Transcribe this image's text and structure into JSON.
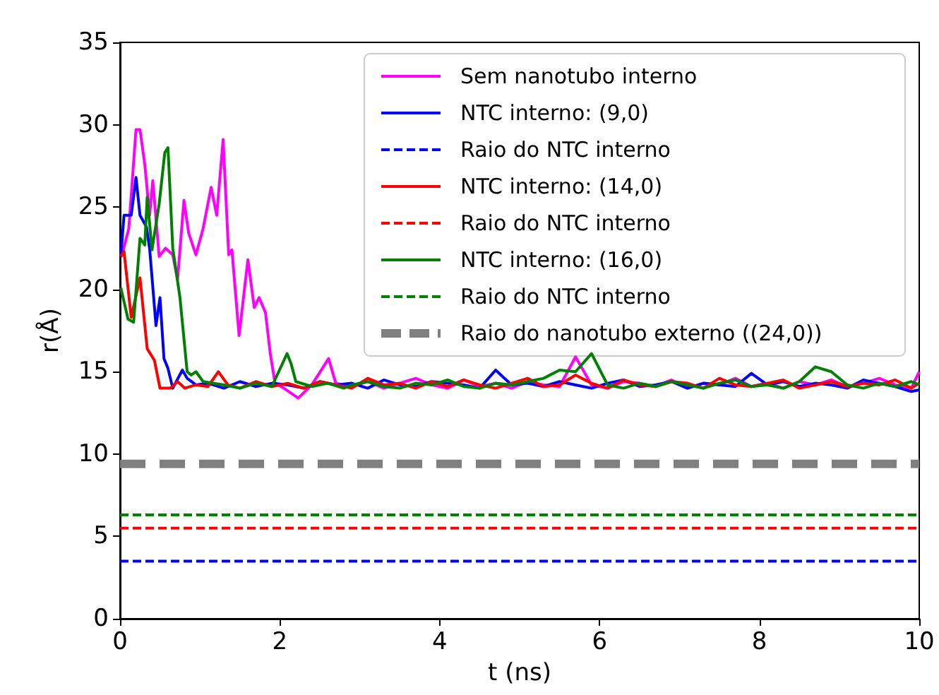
{
  "chart_data": {
    "type": "line",
    "xlabel": "t (ns)",
    "ylabel": "r(Å)",
    "xlim": [
      0,
      10
    ],
    "xticks": [
      0,
      2,
      4,
      6,
      8,
      10
    ],
    "ylim": [
      0,
      35
    ],
    "yticks": [
      0,
      5,
      10,
      15,
      20,
      25,
      30,
      35
    ],
    "grid": false,
    "legend": "top right",
    "marker": "none",
    "series": [
      {
        "name": "Sem nanotubo interno",
        "color": "#ff00ff",
        "line_style": "solid",
        "x": [
          0.02,
          0.11,
          0.2,
          0.25,
          0.31,
          0.37,
          0.41,
          0.49,
          0.57,
          0.66,
          0.72,
          0.8,
          0.86,
          0.95,
          1.04,
          1.14,
          1.21,
          1.29,
          1.36,
          1.4,
          1.49,
          1.6,
          1.68,
          1.74,
          1.82,
          1.88,
          1.94,
          2.05,
          2.23,
          2.4,
          2.61,
          2.7,
          2.9,
          3.1,
          3.3,
          3.5,
          3.7,
          3.9,
          4.1,
          4.3,
          4.5,
          4.7,
          4.9,
          5.1,
          5.3,
          5.5,
          5.7,
          5.9,
          6.1,
          6.3,
          6.5,
          6.7,
          6.9,
          7.1,
          7.3,
          7.5,
          7.7,
          7.9,
          8.1,
          8.3,
          8.5,
          8.7,
          8.9,
          9.1,
          9.3,
          9.5,
          9.7,
          9.9,
          10.0
        ],
        "values": [
          22.0,
          23.7,
          29.7,
          29.7,
          27.6,
          24.5,
          26.6,
          22.0,
          22.5,
          22.1,
          20.6,
          25.4,
          23.4,
          22.1,
          23.7,
          26.2,
          24.5,
          29.1,
          22.1,
          22.4,
          17.2,
          21.8,
          18.9,
          19.5,
          18.6,
          16.1,
          14.3,
          14.0,
          13.4,
          14.2,
          15.8,
          14.3,
          14.1,
          14.4,
          14.0,
          14.3,
          14.6,
          14.2,
          14.0,
          14.5,
          14.1,
          14.3,
          14.0,
          14.4,
          14.2,
          14.1,
          15.9,
          14.2,
          14.0,
          14.4,
          14.3,
          14.1,
          14.5,
          14.0,
          14.3,
          14.2,
          14.6,
          14.1,
          14.3,
          14.0,
          14.4,
          14.2,
          14.5,
          14.1,
          14.3,
          14.6,
          14.2,
          14.0,
          15.0
        ]
      },
      {
        "name": "NTC interno: (9,0)",
        "color": "#0000ff",
        "line_style": "solid",
        "x": [
          0.01,
          0.05,
          0.14,
          0.2,
          0.25,
          0.33,
          0.37,
          0.45,
          0.5,
          0.55,
          0.6,
          0.66,
          0.78,
          0.84,
          0.95,
          1.1,
          1.3,
          1.5,
          1.7,
          1.9,
          2.1,
          2.3,
          2.5,
          2.7,
          2.9,
          3.1,
          3.3,
          3.5,
          3.7,
          3.9,
          4.1,
          4.3,
          4.5,
          4.7,
          4.9,
          5.1,
          5.3,
          5.5,
          5.7,
          5.9,
          6.1,
          6.3,
          6.5,
          6.7,
          6.9,
          7.1,
          7.3,
          7.5,
          7.7,
          7.9,
          8.1,
          8.3,
          8.5,
          8.7,
          8.9,
          9.1,
          9.3,
          9.5,
          9.7,
          9.9,
          10.0
        ],
        "values": [
          22.0,
          24.5,
          24.5,
          26.8,
          24.5,
          23.8,
          22.5,
          17.8,
          19.5,
          15.8,
          15.2,
          14.0,
          15.1,
          14.6,
          14.2,
          14.3,
          14.0,
          14.4,
          14.1,
          14.3,
          14.2,
          14.0,
          14.4,
          14.2,
          14.3,
          14.0,
          14.5,
          14.2,
          14.1,
          14.4,
          14.3,
          14.2,
          14.0,
          15.1,
          14.2,
          14.3,
          14.1,
          14.4,
          14.2,
          14.0,
          14.3,
          14.5,
          14.1,
          14.2,
          14.4,
          14.0,
          14.3,
          14.2,
          14.1,
          14.9,
          14.2,
          14.4,
          14.1,
          14.3,
          14.2,
          14.0,
          14.5,
          14.3,
          14.1,
          13.8,
          13.9
        ]
      },
      {
        "name": "Raio do NTC interno",
        "color": "#0000ff",
        "line_style": "dashed",
        "x": [
          0,
          10
        ],
        "values": [
          3.5,
          3.5
        ]
      },
      {
        "name": "NTC interno: (14,0)",
        "color": "#ff0000",
        "line_style": "solid",
        "x": [
          0.01,
          0.05,
          0.14,
          0.25,
          0.34,
          0.43,
          0.5,
          0.63,
          0.72,
          0.81,
          0.95,
          1.1,
          1.23,
          1.35,
          1.5,
          1.7,
          1.9,
          2.1,
          2.3,
          2.5,
          2.7,
          2.9,
          3.1,
          3.3,
          3.5,
          3.7,
          3.9,
          4.1,
          4.3,
          4.5,
          4.7,
          4.9,
          5.1,
          5.3,
          5.5,
          5.7,
          5.9,
          6.1,
          6.3,
          6.5,
          6.7,
          6.9,
          7.1,
          7.3,
          7.5,
          7.7,
          7.9,
          8.1,
          8.3,
          8.5,
          8.7,
          8.9,
          9.1,
          9.3,
          9.5,
          9.7,
          9.9,
          10.0
        ],
        "values": [
          22.0,
          22.3,
          18.3,
          20.7,
          16.4,
          15.7,
          14.0,
          14.0,
          14.4,
          14.0,
          14.2,
          14.1,
          15.0,
          14.2,
          14.0,
          14.4,
          14.1,
          14.3,
          14.0,
          14.4,
          14.2,
          14.0,
          14.6,
          14.2,
          14.3,
          14.0,
          14.4,
          14.1,
          14.5,
          14.2,
          14.0,
          14.3,
          14.6,
          14.1,
          14.2,
          14.8,
          14.3,
          14.0,
          14.5,
          14.2,
          14.1,
          14.4,
          14.3,
          14.0,
          14.6,
          14.2,
          14.1,
          14.3,
          14.5,
          14.0,
          14.2,
          14.4,
          14.1,
          14.3,
          14.2,
          14.5,
          14.0,
          14.3
        ]
      },
      {
        "name": "Raio do NTC interno",
        "color": "#ff0000",
        "line_style": "dashed",
        "x": [
          0,
          10
        ],
        "values": [
          5.5,
          5.5
        ]
      },
      {
        "name": "NTC interno: (16,0)",
        "color": "#008000",
        "line_style": "solid",
        "x": [
          0.01,
          0.1,
          0.17,
          0.25,
          0.31,
          0.34,
          0.4,
          0.49,
          0.56,
          0.6,
          0.66,
          0.75,
          0.84,
          0.89,
          0.95,
          1.04,
          1.3,
          1.5,
          1.7,
          1.9,
          2.09,
          2.14,
          2.2,
          2.4,
          2.6,
          2.8,
          2.9,
          3.1,
          3.3,
          3.5,
          3.7,
          3.9,
          4.1,
          4.3,
          4.5,
          4.7,
          4.9,
          5.1,
          5.3,
          5.5,
          5.7,
          5.9,
          6.1,
          6.3,
          6.5,
          6.7,
          6.9,
          7.1,
          7.3,
          7.5,
          7.7,
          7.9,
          8.1,
          8.3,
          8.5,
          8.7,
          8.9,
          9.1,
          9.3,
          9.5,
          9.7,
          9.9,
          10.0
        ],
        "values": [
          20.1,
          18.2,
          18.0,
          23.1,
          22.7,
          25.6,
          22.4,
          25.2,
          28.3,
          28.6,
          22.5,
          19.5,
          15.0,
          14.8,
          15.0,
          14.4,
          14.2,
          14.0,
          14.3,
          14.1,
          16.1,
          15.5,
          14.4,
          14.1,
          14.3,
          14.0,
          14.2,
          14.4,
          14.1,
          14.0,
          14.3,
          14.2,
          14.5,
          14.1,
          14.0,
          14.3,
          14.2,
          14.4,
          14.6,
          15.1,
          15.0,
          16.1,
          14.2,
          14.0,
          14.3,
          14.1,
          14.4,
          14.2,
          14.0,
          14.3,
          14.5,
          14.1,
          14.2,
          14.0,
          14.4,
          15.3,
          15.0,
          14.2,
          14.0,
          14.3,
          14.1,
          14.4,
          14.2
        ]
      },
      {
        "name": "Raio do NTC interno",
        "color": "#008000",
        "line_style": "dashed",
        "x": [
          0,
          10
        ],
        "values": [
          6.3,
          6.3
        ]
      },
      {
        "name": "Raio do nanotubo externo ((24,0))",
        "color": "#808080",
        "line_style": "dashed",
        "x": [
          0,
          10
        ],
        "values": [
          9.4,
          9.4
        ]
      }
    ]
  }
}
